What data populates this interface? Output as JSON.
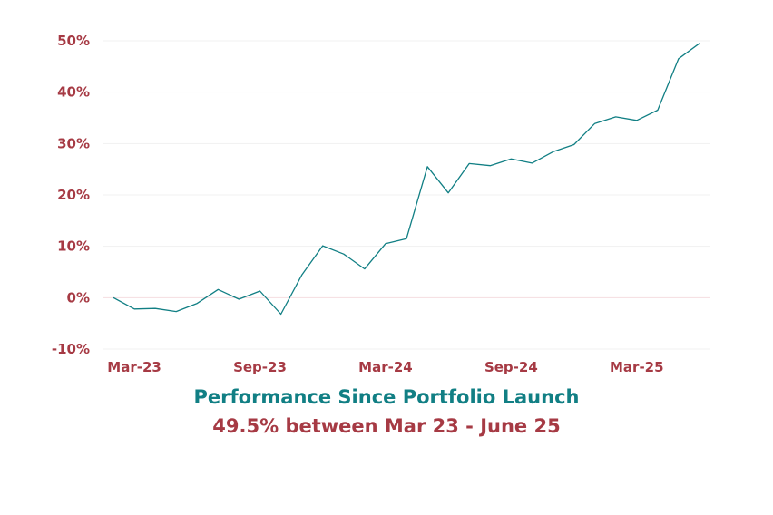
{
  "chart_data": {
    "type": "line",
    "title": "Performance Since Portfolio Launch",
    "subtitle": "49.5% between Mar 23 - June 25",
    "xlabel": "",
    "ylabel": "",
    "x_tick_labels": [
      "Mar-23",
      "Sep-23",
      "Mar-24",
      "Sep-24",
      "Mar-25"
    ],
    "y_tick_labels": [
      "50%",
      "40%",
      "30%",
      "20%",
      "10%",
      "0%",
      "-10%"
    ],
    "ylim": [
      -10,
      50
    ],
    "grid": true,
    "legend": "none",
    "colors": {
      "line": "#117f84",
      "tick_text": "#a63a44",
      "grid": "#f1f1f1",
      "zero_line": "#f5dde0"
    },
    "series": [
      {
        "x": [
          "2023-02",
          "2023-03",
          "2023-04",
          "2023-05",
          "2023-06",
          "2023-07",
          "2023-08",
          "2023-09",
          "2023-10",
          "2023-11",
          "2023-12",
          "2024-01",
          "2024-02",
          "2024-03",
          "2024-04",
          "2024-05",
          "2024-06",
          "2024-07",
          "2024-08",
          "2024-09",
          "2024-10",
          "2024-11",
          "2024-12",
          "2025-01",
          "2025-02",
          "2025-03",
          "2025-04",
          "2025-05",
          "2025-06"
        ],
        "values": [
          0,
          -2.2,
          -2.1,
          -2.7,
          -1.1,
          1.6,
          -0.3,
          1.3,
          -3.2,
          4.4,
          10.1,
          8.5,
          5.6,
          10.5,
          11.5,
          25.5,
          20.4,
          26.1,
          25.7,
          27.0,
          26.2,
          28.4,
          29.8,
          33.9,
          35.2,
          34.5,
          36.5,
          46.5,
          49.5
        ]
      }
    ]
  }
}
